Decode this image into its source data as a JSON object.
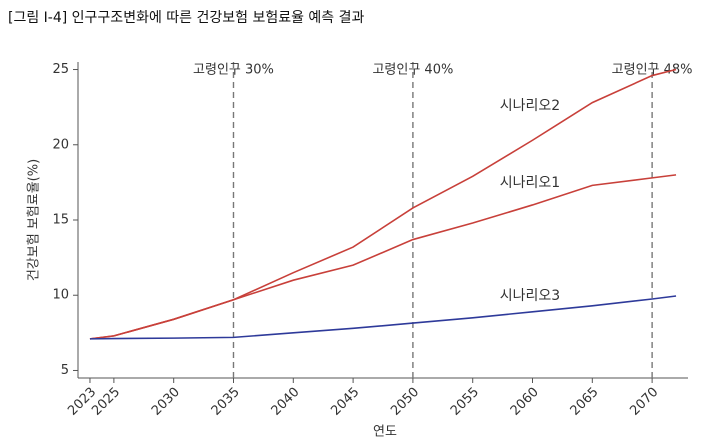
{
  "chart_data": {
    "type": "line",
    "title": "[그림 Ⅰ-4]  인구구조변화에 따른 건강보험 보험료율 예측 결과",
    "x_label": "연도",
    "y_label": "건강보험 보험료율(%)",
    "x": [
      2023,
      2025,
      2030,
      2035,
      2040,
      2045,
      2050,
      2055,
      2060,
      2065,
      2070,
      2072
    ],
    "series": [
      {
        "name": "시나리오2",
        "color": "#c8403a",
        "values": [
          7.1,
          7.3,
          8.4,
          9.7,
          11.5,
          13.2,
          15.8,
          17.9,
          20.3,
          22.8,
          24.6,
          25.0
        ]
      },
      {
        "name": "시나리오1",
        "color": "#c8403a",
        "values": [
          7.1,
          7.3,
          8.4,
          9.7,
          11.0,
          12.0,
          13.7,
          14.8,
          16.0,
          17.3,
          17.8,
          18.0
        ]
      },
      {
        "name": "시나리오3",
        "color": "#2e3a9a",
        "values": [
          7.1,
          7.12,
          7.15,
          7.2,
          7.5,
          7.8,
          8.15,
          8.5,
          8.9,
          9.3,
          9.75,
          9.95
        ]
      }
    ],
    "annotations": [
      {
        "x": 2035,
        "label": "고령인구 30%"
      },
      {
        "x": 2050,
        "label": "고령인구 40%"
      },
      {
        "x": 2070,
        "label": "고령인구 48%"
      }
    ],
    "xlim": [
      2022,
      2073
    ],
    "ylim": [
      4.5,
      25.5
    ],
    "xticks": [
      2023,
      2025,
      2030,
      2035,
      2040,
      2045,
      2050,
      2055,
      2060,
      2065,
      2070
    ],
    "yticks": [
      5,
      10,
      15,
      20,
      25
    ]
  }
}
